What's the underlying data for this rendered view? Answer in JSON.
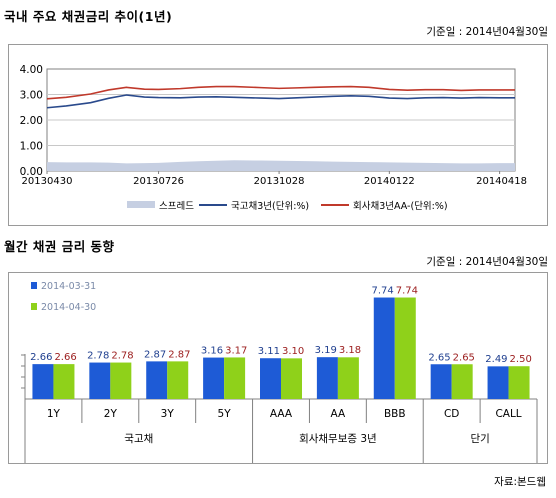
{
  "top": {
    "title": "국내 주요 채권금리 추이(1년)",
    "base_date": "기준일 : 2014년04월30일"
  },
  "bottom": {
    "title": "월간 채권 금리 동향",
    "base_date": "기준일 : 2014년04월30일",
    "source": "자료:본드웹"
  },
  "colors": {
    "spread": "#c6cfe2",
    "govt": "#2a4a8c",
    "corp": "#c0392b",
    "bar_prev": "#1e5bd6",
    "bar_curr": "#8fd11a",
    "label_prev": "#1f3f8f",
    "label_curr": "#9b1c1c"
  },
  "chart_data": [
    {
      "type": "line",
      "ylim": [
        0.0,
        4.0
      ],
      "yticks": [
        "4.00",
        "3.00",
        "2.00",
        "1.00",
        "0.00"
      ],
      "xticks": [
        "20130430",
        "20130726",
        "20131028",
        "20140122",
        "20140418"
      ],
      "legend_position": "bottom",
      "series": [
        {
          "name": "스프레드",
          "type": "area",
          "x": [
            "20130430",
            "20130515",
            "20130603",
            "20130617",
            "20130701",
            "20130715",
            "20130726",
            "20130812",
            "20130826",
            "20130909",
            "20130923",
            "20131014",
            "20131028",
            "20131111",
            "20131125",
            "20131209",
            "20131223",
            "20140106",
            "20140122",
            "20140205",
            "20140219",
            "20140305",
            "20140319",
            "20140402",
            "20140418",
            "20140430"
          ],
          "values": [
            0.35,
            0.34,
            0.34,
            0.33,
            0.3,
            0.31,
            0.32,
            0.36,
            0.38,
            0.4,
            0.42,
            0.41,
            0.4,
            0.39,
            0.38,
            0.37,
            0.36,
            0.35,
            0.34,
            0.33,
            0.32,
            0.31,
            0.3,
            0.3,
            0.31,
            0.31
          ]
        },
        {
          "name": "국고채3년(단위:%)",
          "x": [
            "20130430",
            "20130515",
            "20130603",
            "20130617",
            "20130701",
            "20130715",
            "20130726",
            "20130812",
            "20130826",
            "20130909",
            "20130923",
            "20131014",
            "20131028",
            "20131111",
            "20131125",
            "20131209",
            "20131223",
            "20140106",
            "20140122",
            "20140205",
            "20140219",
            "20140305",
            "20140319",
            "20140402",
            "20140418",
            "20140430"
          ],
          "values": [
            2.48,
            2.55,
            2.68,
            2.85,
            2.98,
            2.9,
            2.88,
            2.87,
            2.9,
            2.91,
            2.89,
            2.86,
            2.84,
            2.87,
            2.9,
            2.93,
            2.95,
            2.93,
            2.86,
            2.84,
            2.87,
            2.88,
            2.86,
            2.88,
            2.87,
            2.87
          ]
        },
        {
          "name": "회사채3년AA-(단위:%)",
          "x": [
            "20130430",
            "20130515",
            "20130603",
            "20130617",
            "20130701",
            "20130715",
            "20130726",
            "20130812",
            "20130826",
            "20130909",
            "20130923",
            "20131014",
            "20131028",
            "20131111",
            "20131125",
            "20131209",
            "20131223",
            "20140106",
            "20140122",
            "20140205",
            "20140219",
            "20140305",
            "20140319",
            "20140402",
            "20140418",
            "20140430"
          ],
          "values": [
            2.83,
            2.89,
            3.02,
            3.18,
            3.28,
            3.21,
            3.2,
            3.23,
            3.28,
            3.31,
            3.31,
            3.27,
            3.24,
            3.26,
            3.28,
            3.3,
            3.31,
            3.28,
            3.2,
            3.17,
            3.19,
            3.19,
            3.16,
            3.18,
            3.18,
            3.18
          ]
        }
      ]
    },
    {
      "type": "bar",
      "categories": [
        "1Y",
        "2Y",
        "3Y",
        "5Y",
        "AAA",
        "AA",
        "BBB",
        "CD",
        "CALL"
      ],
      "groups": [
        {
          "label": "국고채",
          "span": 4
        },
        {
          "label": "회사채무보증 3년",
          "span": 3
        },
        {
          "label": "단기",
          "span": 2
        }
      ],
      "legend_position": "top-left",
      "series": [
        {
          "name": "2014-03-31",
          "values": [
            2.66,
            2.78,
            2.87,
            3.16,
            3.11,
            3.19,
            7.74,
            2.65,
            2.49
          ]
        },
        {
          "name": "2014-04-30",
          "values": [
            2.66,
            2.78,
            2.87,
            3.17,
            3.1,
            3.18,
            7.74,
            2.65,
            2.5
          ]
        }
      ],
      "value_labels_prev": [
        "2.66",
        "2.78",
        "2.87",
        "3.16",
        "3.11",
        "3.19",
        "7.74",
        "2.65",
        "2.49"
      ],
      "value_labels_curr": [
        "2.66",
        "2.78",
        "2.87",
        "3.17",
        "3.10",
        "3.18",
        "7.74",
        "2.65",
        "2.50"
      ]
    }
  ]
}
